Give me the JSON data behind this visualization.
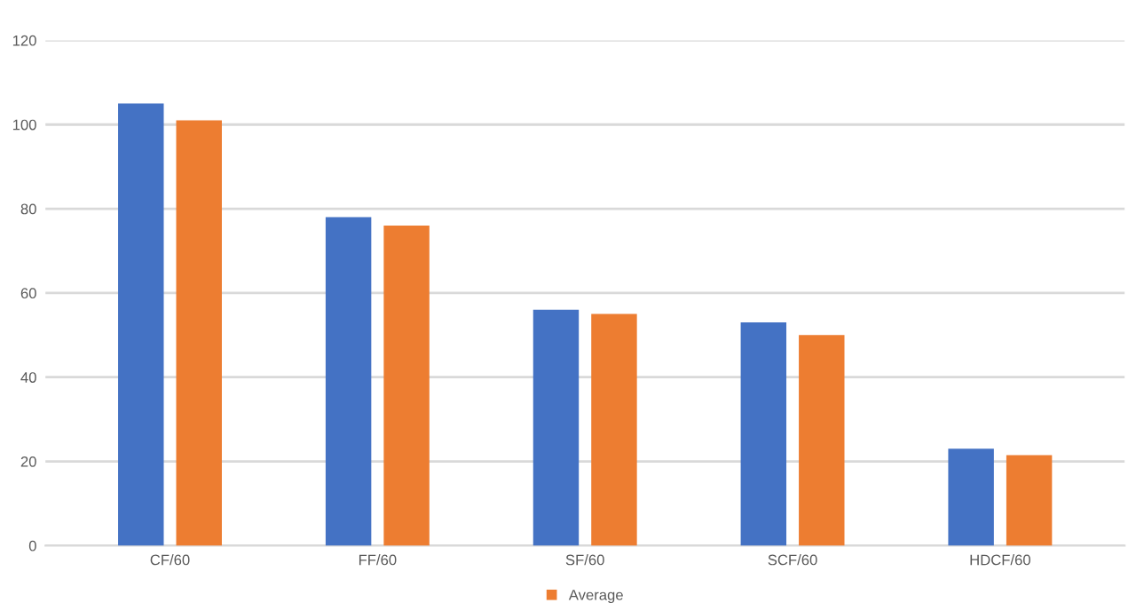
{
  "chart_data": {
    "type": "bar",
    "categories": [
      "CF/60",
      "FF/60",
      "SF/60",
      "SCF/60",
      "HDCF/60"
    ],
    "series": [
      {
        "color": "#4472c4",
        "values": [
          105,
          78,
          56,
          53,
          23
        ]
      },
      {
        "name": "Average",
        "color": "#ed7d31",
        "values": [
          101,
          76,
          55,
          50,
          21.5
        ]
      }
    ],
    "ylim": [
      0,
      120
    ],
    "yticks": [
      0,
      20,
      40,
      60,
      80,
      100,
      120
    ],
    "grid": "y",
    "legend": "bottom"
  }
}
